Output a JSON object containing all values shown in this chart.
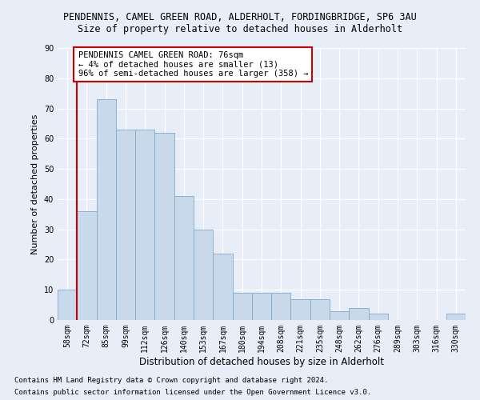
{
  "title_line1": "PENDENNIS, CAMEL GREEN ROAD, ALDERHOLT, FORDINGBRIDGE, SP6 3AU",
  "title_line2": "Size of property relative to detached houses in Alderholt",
  "xlabel": "Distribution of detached houses by size in Alderholt",
  "ylabel": "Number of detached properties",
  "categories": [
    "58sqm",
    "72sqm",
    "85sqm",
    "99sqm",
    "112sqm",
    "126sqm",
    "140sqm",
    "153sqm",
    "167sqm",
    "180sqm",
    "194sqm",
    "208sqm",
    "221sqm",
    "235sqm",
    "248sqm",
    "262sqm",
    "276sqm",
    "289sqm",
    "303sqm",
    "316sqm",
    "330sqm"
  ],
  "values": [
    10,
    36,
    73,
    63,
    63,
    62,
    41,
    30,
    22,
    9,
    9,
    9,
    7,
    7,
    3,
    4,
    2,
    0,
    0,
    0,
    2
  ],
  "bar_color": "#c9d9ec",
  "bar_edge_color": "#7faacc",
  "highlight_line_color": "#cc0000",
  "ylim": [
    0,
    90
  ],
  "yticks": [
    0,
    10,
    20,
    30,
    40,
    50,
    60,
    70,
    80,
    90
  ],
  "annotation_text": "PENDENNIS CAMEL GREEN ROAD: 76sqm\n← 4% of detached houses are smaller (13)\n96% of semi-detached houses are larger (358) →",
  "annotation_box_color": "#ffffff",
  "annotation_box_edge": "#cc0000",
  "footer_line1": "Contains HM Land Registry data © Crown copyright and database right 2024.",
  "footer_line2": "Contains public sector information licensed under the Open Government Licence v3.0.",
  "bg_color": "#e8eef8",
  "plot_bg_color": "#e8eef8",
  "grid_color": "#ffffff",
  "title_fontsize": 8.5,
  "subtitle_fontsize": 8.5,
  "tick_fontsize": 7,
  "ylabel_fontsize": 8,
  "xlabel_fontsize": 8.5,
  "annotation_fontsize": 7.5,
  "footer_fontsize": 6.5,
  "red_line_bar_index": 1
}
